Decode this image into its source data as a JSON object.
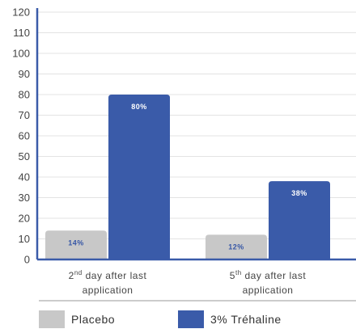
{
  "chart_data": {
    "type": "bar",
    "y_ticks": [
      "0",
      "10",
      "20",
      "30",
      "40",
      "50",
      "60",
      "70",
      "80",
      "90",
      "100",
      "110",
      "120"
    ],
    "ylim": [
      0,
      120
    ],
    "grid": true,
    "legend_position": "bottom",
    "categories": [
      {
        "line1_prefix": "2",
        "line1_sup": "nd",
        "line1_rest": " day after last",
        "line2": "application"
      },
      {
        "line1_prefix": "5",
        "line1_sup": "th",
        "line1_rest": " day after last",
        "line2": "application"
      }
    ],
    "series": [
      {
        "name": "Placebo",
        "color": "#c8c8c8",
        "label_color": "#3757a6",
        "values": [
          14,
          12
        ],
        "labels": [
          "14%",
          "12%"
        ]
      },
      {
        "name": "3% Tréhaline",
        "color": "#3a5ba9",
        "label_color": "#ffffff",
        "values": [
          80,
          38
        ],
        "labels": [
          "80%",
          "38%"
        ]
      }
    ]
  }
}
